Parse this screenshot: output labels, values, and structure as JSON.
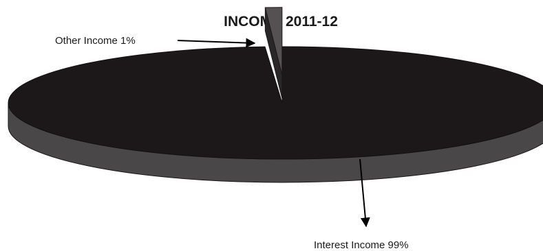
{
  "chart_data": {
    "type": "pie",
    "title": "INCOME 2011-12",
    "slices": [
      {
        "name": "Interest Income",
        "value": 99,
        "label": "Interest Income 99%",
        "color": "#1c1819",
        "side_color": "#4a4748"
      },
      {
        "name": "Other Income",
        "value": 1,
        "label": "Other Income 1%",
        "color": "#555152",
        "side_color": "#2a2728"
      }
    ],
    "style": "3d-exploded",
    "legend": "none",
    "data_labels": "outside-with-arrows"
  }
}
